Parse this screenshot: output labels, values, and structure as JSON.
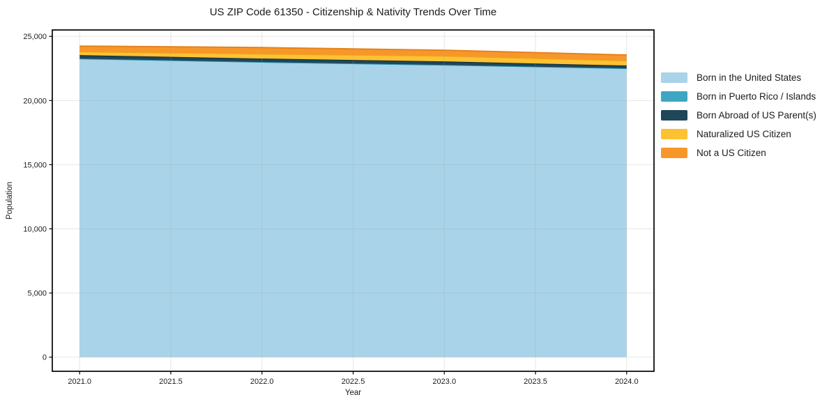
{
  "title": "US ZIP Code 61350 - Citizenship & Nativity Trends Over Time",
  "chart_data": {
    "type": "area",
    "stacked": true,
    "title": "US ZIP Code 61350 - Citizenship & Nativity Trends Over Time",
    "xlabel": "Year",
    "ylabel": "Population",
    "x": [
      2021,
      2022,
      2023,
      2024
    ],
    "series": [
      {
        "name": "Born in the United States",
        "color": "#a9d3e8",
        "edge": "#85bdd6",
        "values": [
          23270,
          23000,
          22780,
          22510
        ]
      },
      {
        "name": "Born in Puerto Rico / Islands",
        "color": "#3ea6c3",
        "edge": "#2f94b3",
        "values": [
          0,
          0,
          0,
          0
        ]
      },
      {
        "name": "Born Abroad of US Parent(s)",
        "color": "#1f4659",
        "edge": "#122c3a",
        "values": [
          270,
          270,
          270,
          220
        ]
      },
      {
        "name": "Naturalized US Citizen",
        "color": "#fdc232",
        "edge": "#e8a61c",
        "values": [
          270,
          370,
          430,
          380
        ]
      },
      {
        "name": "Not a US Citizen",
        "color": "#f89729",
        "edge": "#e5821a",
        "values": [
          430,
          490,
          440,
          440
        ]
      }
    ],
    "xlim": [
      2020.85,
      2024.15
    ],
    "ylim": [
      -1100,
      25500
    ],
    "xticks": [
      2021.0,
      2021.5,
      2022.0,
      2022.5,
      2023.0,
      2023.5,
      2024.0
    ],
    "xtick_labels": [
      "2021.0",
      "2021.5",
      "2022.0",
      "2022.5",
      "2023.0",
      "2023.5",
      "2024.0"
    ],
    "yticks": [
      0,
      5000,
      10000,
      15000,
      20000,
      25000
    ],
    "ytick_labels": [
      "0",
      "5,000",
      "10,000",
      "15,000",
      "20,000",
      "25,000"
    ],
    "grid": true,
    "legend_position": "right",
    "colors": {
      "spine": "#000000",
      "grid": "#9e9e9e",
      "text": "#1a1a1a",
      "background": "#ffffff"
    }
  }
}
